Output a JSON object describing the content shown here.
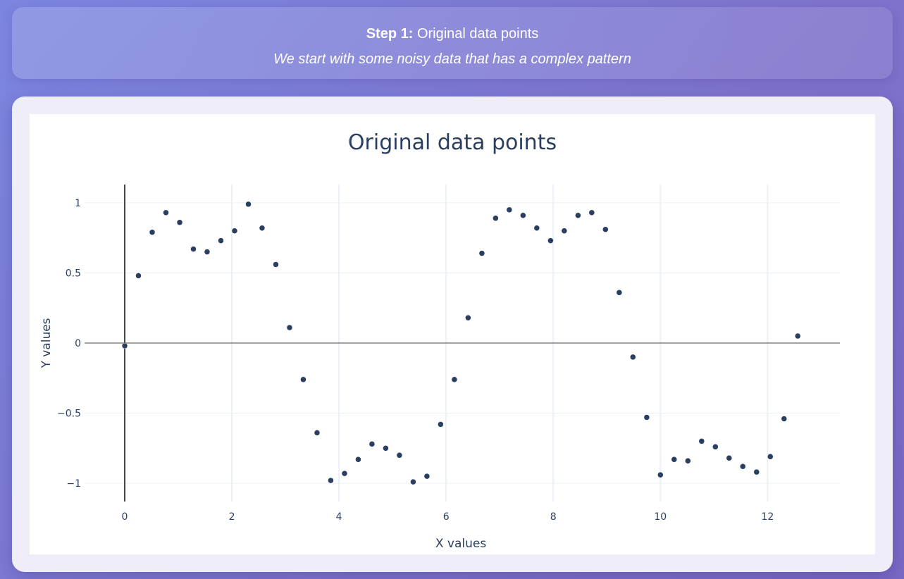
{
  "banner": {
    "step_label": "Step 1:",
    "step_title": "Original data points",
    "subtitle": "We start with some noisy data that has a complex pattern"
  },
  "chart_data": {
    "type": "scatter",
    "title": "Original data points",
    "xlabel": "X values",
    "ylabel": "Y values",
    "xlim": [
      -0.75,
      13.35
    ],
    "ylim": [
      -1.13,
      1.13
    ],
    "x_ticks": [
      0,
      2,
      4,
      6,
      8,
      10,
      12
    ],
    "y_ticks": [
      -1,
      -0.5,
      0,
      0.5,
      1
    ],
    "y_tick_labels": [
      "−1",
      "−0.5",
      "0",
      "0.5",
      "1"
    ],
    "grid": true,
    "marker_color": "#2a3f5f",
    "series": [
      {
        "x": [
          0,
          0.256,
          0.513,
          0.769,
          1.026,
          1.282,
          1.538,
          1.795,
          2.051,
          2.308,
          2.564,
          2.821,
          3.077,
          3.333,
          3.59,
          3.846,
          4.103,
          4.359,
          4.615,
          4.872,
          5.128,
          5.385,
          5.641,
          5.897,
          6.154,
          6.41,
          6.667,
          6.923,
          7.179,
          7.436,
          7.692,
          7.949,
          8.205,
          8.462,
          8.718,
          8.974,
          9.231,
          9.487,
          9.744,
          10.0,
          10.256,
          10.513,
          10.769,
          11.026,
          11.282,
          11.538,
          11.795,
          12.051,
          12.308,
          12.564
        ],
        "y": [
          -0.02,
          0.48,
          0.79,
          0.93,
          0.86,
          0.67,
          0.65,
          0.73,
          0.8,
          0.99,
          0.82,
          0.56,
          0.11,
          -0.26,
          -0.64,
          -0.98,
          -0.93,
          -0.83,
          -0.72,
          -0.75,
          -0.8,
          -0.99,
          -0.95,
          -0.58,
          -0.26,
          0.18,
          0.64,
          0.89,
          0.95,
          0.91,
          0.82,
          0.73,
          0.8,
          0.91,
          0.93,
          0.81,
          0.36,
          -0.1,
          -0.53,
          -0.94,
          -0.83,
          -0.84,
          -0.7,
          -0.74,
          -0.82,
          -0.88,
          -0.92,
          -0.81,
          -0.54,
          0.05
        ]
      }
    ]
  }
}
